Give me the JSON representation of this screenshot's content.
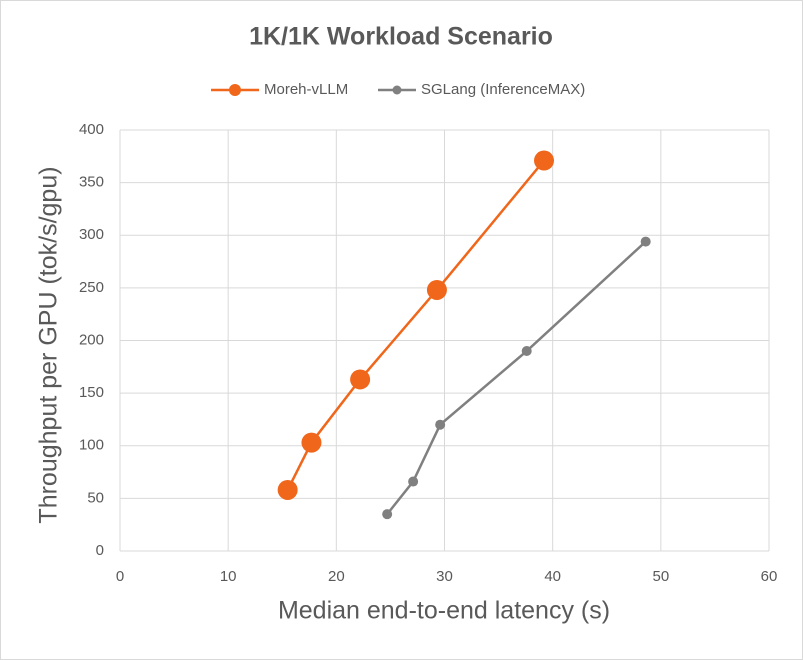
{
  "chart_data": {
    "type": "line",
    "title": "1K/1K Workload Scenario",
    "x_label": "Median end-to-end latency (s)",
    "y_label": "Throughput per GPU (tok/s/gpu)",
    "xlim": [
      0,
      60
    ],
    "xticks": [
      0,
      10,
      20,
      30,
      40,
      50,
      60
    ],
    "ylim": [
      0,
      400
    ],
    "yticks": [
      0,
      50,
      100,
      150,
      200,
      250,
      300,
      350,
      400
    ],
    "grid": true,
    "legend": "top",
    "series": [
      {
        "name": "Moreh-vLLM",
        "color": "#f0661a",
        "x": [
          15.5,
          17.7,
          22.2,
          29.3,
          39.2
        ],
        "values": [
          58,
          103,
          163,
          248,
          371
        ]
      },
      {
        "name": "SGLang (InferenceMAX)",
        "color": "#808080",
        "x": [
          24.7,
          27.1,
          29.6,
          37.6,
          48.6
        ],
        "values": [
          35,
          66,
          120,
          190,
          294
        ]
      }
    ]
  }
}
